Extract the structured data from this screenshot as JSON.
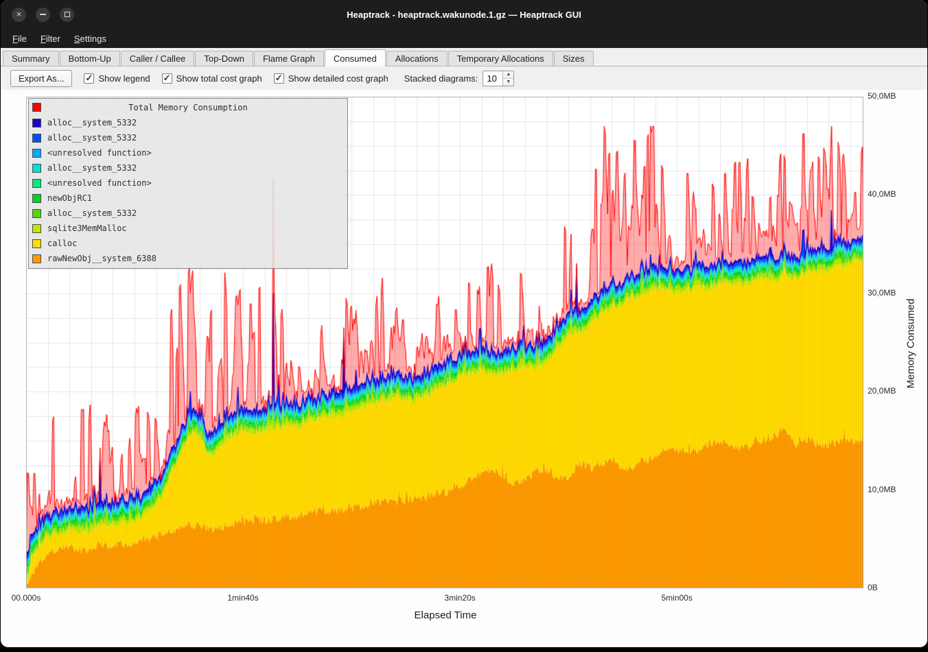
{
  "window": {
    "title": "Heaptrack - heaptrack.wakunode.1.gz — Heaptrack GUI"
  },
  "menubar": {
    "items": [
      {
        "label": "File"
      },
      {
        "label": "Filter"
      },
      {
        "label": "Settings"
      }
    ]
  },
  "tabs": [
    {
      "label": "Summary"
    },
    {
      "label": "Bottom-Up"
    },
    {
      "label": "Caller / Callee"
    },
    {
      "label": "Top-Down"
    },
    {
      "label": "Flame Graph"
    },
    {
      "label": "Consumed",
      "active": true
    },
    {
      "label": "Allocations"
    },
    {
      "label": "Temporary Allocations"
    },
    {
      "label": "Sizes"
    }
  ],
  "toolbar": {
    "export_label": "Export As...",
    "checkboxes": [
      {
        "label": "Show legend",
        "checked": true
      },
      {
        "label": "Show total cost graph",
        "checked": true
      },
      {
        "label": "Show detailed cost graph",
        "checked": true
      }
    ],
    "stacked_label": "Stacked diagrams:",
    "stacked_value": "10"
  },
  "legend": {
    "title": "Total Memory Consumption",
    "title_color": "#ff0000",
    "entries": [
      {
        "label": "alloc__system_5332",
        "color": "#1803d1"
      },
      {
        "label": "alloc__system_5332",
        "color": "#0050ff"
      },
      {
        "label": "<unresolved function>",
        "color": "#00aaff"
      },
      {
        "label": "alloc__system_5332",
        "color": "#00e0d8"
      },
      {
        "label": "<unresolved function>",
        "color": "#00e87e"
      },
      {
        "label": "newObjRC1",
        "color": "#00d228"
      },
      {
        "label": "alloc__system_5332",
        "color": "#52d800"
      },
      {
        "label": "sqlite3MemMalloc",
        "color": "#bce800"
      },
      {
        "label": "calloc",
        "color": "#ffdf00"
      },
      {
        "label": "rawNewObj__system_6388",
        "color": "#ff9b00"
      }
    ]
  },
  "chart_data": {
    "type": "area",
    "title": "Total Memory Consumption",
    "xlabel": "Elapsed Time",
    "ylabel": "Memory Consumed",
    "t_max": 386,
    "y_max": 50,
    "seed": 1337,
    "samples": 760,
    "grid": {
      "x_step": 10,
      "y_step": 2.5,
      "color": "#e6e6e6"
    },
    "x_ticks": [
      {
        "t": 0,
        "label": "00.000s"
      },
      {
        "t": 100,
        "label": "1min40s"
      },
      {
        "t": 200,
        "label": "3min20s"
      },
      {
        "t": 300,
        "label": "5min00s"
      }
    ],
    "y_ticks": [
      {
        "v": 0,
        "label": "0B"
      },
      {
        "v": 10,
        "label": "10,0MB"
      },
      {
        "v": 20,
        "label": "20,0MB"
      },
      {
        "v": 30,
        "label": "30,0MB"
      },
      {
        "v": 40,
        "label": "40,0MB"
      },
      {
        "v": 50,
        "label": "50,0MB"
      }
    ],
    "stack": [
      {
        "name": "rawNewObj__system_6388",
        "color": "#ff9b00",
        "hatch": "rgba(210,120,0,0.35)",
        "noise": 0.5,
        "spike": [
          0.05,
          1.5
        ],
        "keys": [
          [
            0,
            0
          ],
          [
            3,
            1.5
          ],
          [
            6,
            2.8
          ],
          [
            10,
            3.6
          ],
          [
            15,
            4.1
          ],
          [
            20,
            4.3
          ],
          [
            25,
            3.9
          ],
          [
            30,
            4.1
          ],
          [
            35,
            4.6
          ],
          [
            40,
            4.4
          ],
          [
            45,
            4.7
          ],
          [
            50,
            4.6
          ],
          [
            55,
            5.0
          ],
          [
            60,
            5.2
          ],
          [
            65,
            5.6
          ],
          [
            70,
            6.2
          ],
          [
            75,
            6.6
          ],
          [
            80,
            6.4
          ],
          [
            85,
            6.1
          ],
          [
            90,
            6.3
          ],
          [
            95,
            6.6
          ],
          [
            100,
            6.8
          ],
          [
            110,
            7.0
          ],
          [
            120,
            7.2
          ],
          [
            130,
            7.6
          ],
          [
            140,
            8.0
          ],
          [
            150,
            8.1
          ],
          [
            160,
            8.6
          ],
          [
            170,
            8.9
          ],
          [
            180,
            9.1
          ],
          [
            190,
            9.6
          ],
          [
            200,
            10.2
          ],
          [
            205,
            11.0
          ],
          [
            210,
            11.8
          ],
          [
            215,
            12.1
          ],
          [
            220,
            11.2
          ],
          [
            225,
            10.8
          ],
          [
            230,
            11.2
          ],
          [
            235,
            11.8
          ],
          [
            240,
            12.2
          ],
          [
            245,
            11.4
          ],
          [
            250,
            11.2
          ],
          [
            255,
            12.8
          ],
          [
            260,
            12.2
          ],
          [
            265,
            12.6
          ],
          [
            270,
            13.2
          ],
          [
            275,
            12.4
          ],
          [
            280,
            12.2
          ],
          [
            285,
            13.0
          ],
          [
            290,
            13.6
          ],
          [
            295,
            14.0
          ],
          [
            300,
            14.2
          ],
          [
            305,
            13.8
          ],
          [
            310,
            14.2
          ],
          [
            315,
            14.8
          ],
          [
            320,
            15.2
          ],
          [
            325,
            14.4
          ],
          [
            330,
            14.2
          ],
          [
            335,
            14.8
          ],
          [
            340,
            15.2
          ],
          [
            345,
            15.6
          ],
          [
            350,
            16.2
          ],
          [
            355,
            14.6
          ],
          [
            360,
            15.2
          ],
          [
            365,
            14.8
          ],
          [
            370,
            14.4
          ],
          [
            375,
            15.0
          ],
          [
            380,
            15.2
          ],
          [
            386,
            15.0
          ]
        ]
      },
      {
        "name": "calloc",
        "color": "#ffdf00",
        "hatch": "rgba(235,168,0,0.35)",
        "noise": 0.4,
        "spike": [
          0.03,
          1.2
        ],
        "keys": [
          [
            0,
            0.3
          ],
          [
            3,
            3.0
          ],
          [
            6,
            4.4
          ],
          [
            10,
            5.2
          ],
          [
            15,
            5.6
          ],
          [
            20,
            5.9
          ],
          [
            25,
            5.7
          ],
          [
            30,
            6.0
          ],
          [
            35,
            6.3
          ],
          [
            40,
            6.4
          ],
          [
            45,
            6.7
          ],
          [
            50,
            6.9
          ],
          [
            55,
            7.6
          ],
          [
            60,
            8.6
          ],
          [
            63,
            9.6
          ],
          [
            66,
            11.2
          ],
          [
            69,
            12.6
          ],
          [
            72,
            14.0
          ],
          [
            75,
            15.4
          ],
          [
            78,
            15.8
          ],
          [
            81,
            15.2
          ],
          [
            84,
            13.6
          ],
          [
            87,
            13.8
          ],
          [
            90,
            14.4
          ],
          [
            93,
            15.2
          ],
          [
            96,
            15.8
          ],
          [
            100,
            16.0
          ],
          [
            105,
            15.8
          ],
          [
            110,
            16.1
          ],
          [
            115,
            16.3
          ],
          [
            120,
            16.6
          ],
          [
            125,
            16.4
          ],
          [
            130,
            17.0
          ],
          [
            135,
            17.2
          ],
          [
            140,
            17.6
          ],
          [
            145,
            17.5
          ],
          [
            150,
            18.0
          ],
          [
            155,
            18.3
          ],
          [
            160,
            18.7
          ],
          [
            165,
            19.0
          ],
          [
            170,
            19.6
          ],
          [
            175,
            19.2
          ],
          [
            180,
            19.1
          ],
          [
            185,
            19.6
          ],
          [
            190,
            20.2
          ],
          [
            195,
            20.8
          ],
          [
            200,
            21.6
          ],
          [
            205,
            21.9
          ],
          [
            210,
            22.1
          ],
          [
            215,
            21.8
          ],
          [
            220,
            22.0
          ],
          [
            225,
            22.3
          ],
          [
            230,
            22.5
          ],
          [
            235,
            22.4
          ],
          [
            240,
            23.0
          ],
          [
            243,
            23.8
          ],
          [
            246,
            24.8
          ],
          [
            250,
            25.8
          ],
          [
            253,
            26.2
          ],
          [
            256,
            26.0
          ],
          [
            260,
            26.8
          ],
          [
            263,
            27.4
          ],
          [
            266,
            28.0
          ],
          [
            270,
            28.4
          ],
          [
            273,
            28.8
          ],
          [
            276,
            29.2
          ],
          [
            280,
            29.5
          ],
          [
            284,
            29.9
          ],
          [
            288,
            30.3
          ],
          [
            292,
            30.6
          ],
          [
            296,
            30.2
          ],
          [
            300,
            30.0
          ],
          [
            305,
            30.3
          ],
          [
            310,
            30.6
          ],
          [
            315,
            30.4
          ],
          [
            320,
            30.9
          ],
          [
            325,
            31.1
          ],
          [
            330,
            30.8
          ],
          [
            335,
            31.2
          ],
          [
            340,
            31.5
          ],
          [
            345,
            31.3
          ],
          [
            350,
            31.9
          ],
          [
            355,
            31.6
          ],
          [
            360,
            32.0
          ],
          [
            365,
            32.2
          ],
          [
            370,
            32.4
          ],
          [
            375,
            32.7
          ],
          [
            380,
            33.0
          ],
          [
            386,
            33.4
          ]
        ]
      },
      {
        "name": "sqlite3MemMalloc",
        "color": "#bce800",
        "hatch": "rgba(140,180,0,0.35)",
        "thickness": 0.45,
        "spike": [
          0.08,
          1.6
        ]
      },
      {
        "name": "alloc__system_5332",
        "color": "#52d800",
        "thickness": 0.3,
        "spike": [
          0.05,
          1.0
        ]
      },
      {
        "name": "newObjRC1",
        "color": "#00d228",
        "thickness": 0.3,
        "spike": [
          0.04,
          0.9
        ]
      },
      {
        "name": "<unresolved function>",
        "color": "#00e87e",
        "thickness": 0.22,
        "spike": [
          0.03,
          0.7
        ]
      },
      {
        "name": "alloc__system_5332",
        "color": "#00e0d8",
        "thickness": 0.2,
        "spike": [
          0.03,
          0.6
        ]
      },
      {
        "name": "<unresolved function>",
        "color": "#00aaff",
        "thickness": 0.2,
        "spike": [
          0.02,
          0.6
        ]
      },
      {
        "name": "alloc__system_5332",
        "color": "#0050ff",
        "thickness": 0.28,
        "spike": [
          0.015,
          2.5
        ]
      },
      {
        "name": "alloc__system_5332",
        "color": "#1803d1",
        "thickness": 0.22,
        "spike": [
          0.006,
          12
        ]
      }
    ],
    "total": {
      "name": "Total Memory Consumption",
      "color": "#ff0000",
      "fill": "rgba(255,70,70,0.30)",
      "hatch": "rgba(255,0,0,0.28)",
      "spike_prob": 0.18,
      "cap": 47,
      "dense": [
        [
          60,
          100,
          0.1
        ],
        [
          160,
          190,
          0.08
        ],
        [
          258,
          296,
          0.35
        ],
        [
          300,
          386,
          0.18
        ]
      ],
      "amp_keys": [
        [
          0,
          9
        ],
        [
          20,
          11
        ],
        [
          40,
          9
        ],
        [
          60,
          13
        ],
        [
          70,
          17
        ],
        [
          78,
          17
        ],
        [
          85,
          13
        ],
        [
          95,
          15
        ],
        [
          100,
          16
        ],
        [
          120,
          13
        ],
        [
          140,
          14
        ],
        [
          160,
          13
        ],
        [
          175,
          16
        ],
        [
          185,
          12
        ],
        [
          200,
          9
        ],
        [
          210,
          9
        ],
        [
          220,
          10
        ],
        [
          230,
          8
        ],
        [
          240,
          9
        ],
        [
          248,
          11
        ],
        [
          258,
          13
        ],
        [
          268,
          17
        ],
        [
          278,
          16
        ],
        [
          288,
          16
        ],
        [
          295,
          14
        ],
        [
          300,
          9
        ],
        [
          305,
          10
        ],
        [
          315,
          11
        ],
        [
          325,
          10
        ],
        [
          335,
          11
        ],
        [
          345,
          10
        ],
        [
          355,
          11
        ],
        [
          365,
          11
        ],
        [
          375,
          11
        ],
        [
          386,
          11
        ]
      ]
    }
  }
}
